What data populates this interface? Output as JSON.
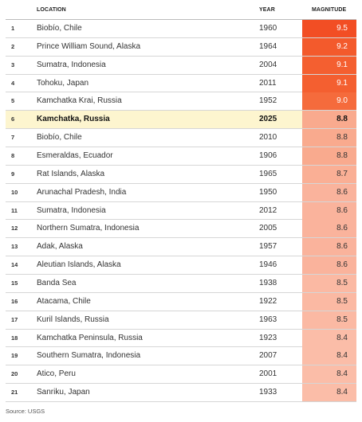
{
  "chart_data": {
    "type": "table",
    "columns": [
      "",
      "LOCATION",
      "YEAR",
      "MAGNITUDE"
    ],
    "rows": [
      {
        "rank": "1",
        "location": "Biobío, Chile",
        "year": "1960",
        "magnitude": "9.5"
      },
      {
        "rank": "2",
        "location": "Prince William Sound, Alaska",
        "year": "1964",
        "magnitude": "9.2"
      },
      {
        "rank": "3",
        "location": "Sumatra, Indonesia",
        "year": "2004",
        "magnitude": "9.1"
      },
      {
        "rank": "4",
        "location": "Tohoku, Japan",
        "year": "2011",
        "magnitude": "9.1"
      },
      {
        "rank": "5",
        "location": "Kamchatka Krai, Russia",
        "year": "1952",
        "magnitude": "9.0"
      },
      {
        "rank": "6",
        "location": "Kamchatka, Russia",
        "year": "2025",
        "magnitude": "8.8",
        "highlight": true
      },
      {
        "rank": "7",
        "location": "Biobío, Chile",
        "year": "2010",
        "magnitude": "8.8"
      },
      {
        "rank": "8",
        "location": "Esmeraldas, Ecuador",
        "year": "1906",
        "magnitude": "8.8"
      },
      {
        "rank": "9",
        "location": "Rat Islands, Alaska",
        "year": "1965",
        "magnitude": "8.7"
      },
      {
        "rank": "10",
        "location": "Arunachal Pradesh, India",
        "year": "1950",
        "magnitude": "8.6"
      },
      {
        "rank": "11",
        "location": "Sumatra, Indonesia",
        "year": "2012",
        "magnitude": "8.6"
      },
      {
        "rank": "12",
        "location": "Northern Sumatra, Indonesia",
        "year": "2005",
        "magnitude": "8.6"
      },
      {
        "rank": "13",
        "location": "Adak, Alaska",
        "year": "1957",
        "magnitude": "8.6"
      },
      {
        "rank": "14",
        "location": "Aleutian Islands, Alaska",
        "year": "1946",
        "magnitude": "8.6"
      },
      {
        "rank": "15",
        "location": "Banda Sea",
        "year": "1938",
        "magnitude": "8.5"
      },
      {
        "rank": "16",
        "location": "Atacama, Chile",
        "year": "1922",
        "magnitude": "8.5"
      },
      {
        "rank": "17",
        "location": "Kuril Islands, Russia",
        "year": "1963",
        "magnitude": "8.5"
      },
      {
        "rank": "18",
        "location": "Kamchatka Peninsula, Russia",
        "year": "1923",
        "magnitude": "8.4"
      },
      {
        "rank": "19",
        "location": "Southern Sumatra, Indonesia",
        "year": "2007",
        "magnitude": "8.4"
      },
      {
        "rank": "20",
        "location": "Atico, Peru",
        "year": "2001",
        "magnitude": "8.4"
      },
      {
        "rank": "21",
        "location": "Sanriku, Japan",
        "year": "1933",
        "magnitude": "8.4"
      }
    ],
    "source": "Source: USGS",
    "colors": {
      "9.5": "#f24e24",
      "9.2": "#f35a2c",
      "9.1": "#f45f30",
      "9.0": "#f56b3c",
      "8.8": "#f9aa8e",
      "8.7": "#faaf95",
      "8.6": "#fab39c",
      "8.5": "#fbb9a3",
      "8.4": "#fbbda8"
    },
    "highlight_color": "#fdf5cf"
  }
}
